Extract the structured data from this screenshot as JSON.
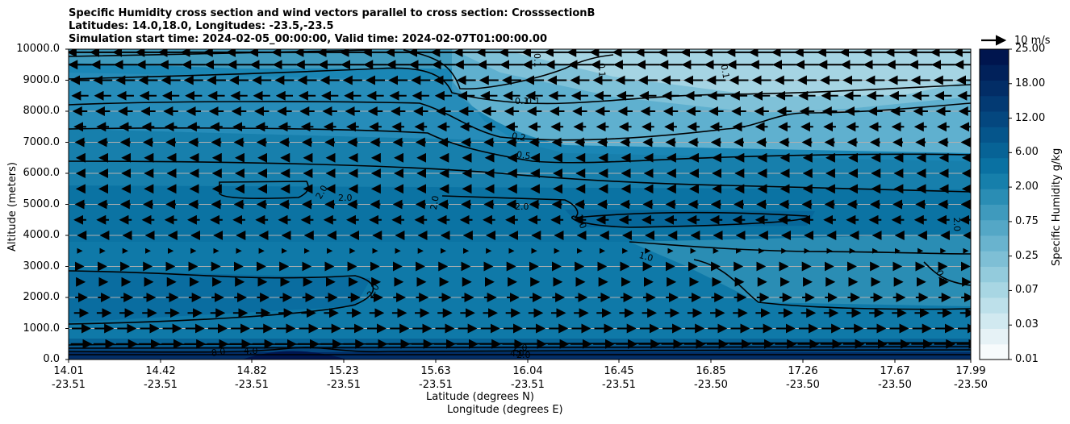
{
  "title_lines": [
    "Specific Humidity cross section and wind vectors parallel to cross section: CrosssectionB",
    "Latitudes: 14.0,18.0, Longitudes: -23.5,-23.5",
    "Simulation start time: 2024-02-05_00:00:00, Valid time: 2024-02-07T01:00:00.00"
  ],
  "chart_data": {
    "type": "heatmap",
    "title": "Specific Humidity cross section and wind vectors parallel to cross section: CrosssectionB",
    "ylabel": "Altitude (meters)",
    "xlabel_lat": "Latitude (degrees N)",
    "xlabel_lon": "Longitude (degrees E)",
    "ylim": [
      0,
      10000
    ],
    "y_ticks": [
      "0.0",
      "1000.0",
      "2000.0",
      "3000.0",
      "4000.0",
      "5000.0",
      "6000.0",
      "7000.0",
      "8000.0",
      "9000.0",
      "10000.0"
    ],
    "x_ticks": [
      {
        "lat": "14.01",
        "lon": "-23.51"
      },
      {
        "lat": "14.42",
        "lon": "-23.51"
      },
      {
        "lat": "14.82",
        "lon": "-23.51"
      },
      {
        "lat": "15.23",
        "lon": "-23.51"
      },
      {
        "lat": "15.63",
        "lon": "-23.51"
      },
      {
        "lat": "16.04",
        "lon": "-23.51"
      },
      {
        "lat": "16.45",
        "lon": "-23.51"
      },
      {
        "lat": "16.85",
        "lon": "-23.50"
      },
      {
        "lat": "17.26",
        "lon": "-23.50"
      },
      {
        "lat": "17.67",
        "lon": "-23.50"
      },
      {
        "lat": "17.99",
        "lon": "-23.50"
      }
    ],
    "colorbar": {
      "label": "Specific Humidity g/kg",
      "ticks": [
        "0.01",
        "0.03",
        "0.07",
        "0.25",
        "0.75",
        "2.00",
        "6.00",
        "12.00",
        "18.00",
        "25.00"
      ],
      "colors": [
        "#f7fbfc",
        "#e6f2f6",
        "#d1e9f0",
        "#bde0ea",
        "#a8d6e3",
        "#93cbdc",
        "#7ebfd5",
        "#69b3ce",
        "#54a7c6",
        "#3f9abd",
        "#2a8db4",
        "#167fab",
        "#0a71a2",
        "#076396",
        "#05558b",
        "#04477f",
        "#033a73",
        "#022d66",
        "#01215a",
        "#00154e"
      ]
    },
    "contour_labels": [
      "0.1",
      "0.1",
      "0.1",
      "0.1",
      "0.1",
      "0.2",
      "0.5",
      "2.0",
      "2.0",
      "2.0",
      "2.0",
      "2.0",
      "2.0",
      "1.0",
      "0.5",
      "2.0",
      "2.0",
      "2.0",
      "8.0",
      "4.0",
      "4.0"
    ],
    "wind_reference": "10 m/s",
    "wind_rows": [
      {
        "alt": 9900,
        "u": -5.5
      },
      {
        "alt": 9500,
        "u": -5.0
      },
      {
        "alt": 9000,
        "u": -4.0
      },
      {
        "alt": 8500,
        "u": -3.5
      },
      {
        "alt": 8000,
        "u": -3.0
      },
      {
        "alt": 7500,
        "u": -2.5
      },
      {
        "alt": 7000,
        "u": -2.0
      },
      {
        "alt": 6500,
        "u": -1.5
      },
      {
        "alt": 6000,
        "u": -1.5
      },
      {
        "alt": 5500,
        "u": -1.5
      },
      {
        "alt": 5000,
        "u": -2.0
      },
      {
        "alt": 4500,
        "u": -2.5
      },
      {
        "alt": 4000,
        "u": -1.0
      },
      {
        "alt": 3500,
        "u": 0.5
      },
      {
        "alt": 3000,
        "u": 1.0
      },
      {
        "alt": 2500,
        "u": 1.5
      },
      {
        "alt": 2000,
        "u": 2.5
      },
      {
        "alt": 1500,
        "u": 3.0
      },
      {
        "alt": 1000,
        "u": 4.0
      },
      {
        "alt": 500,
        "u": 4.5
      }
    ]
  }
}
